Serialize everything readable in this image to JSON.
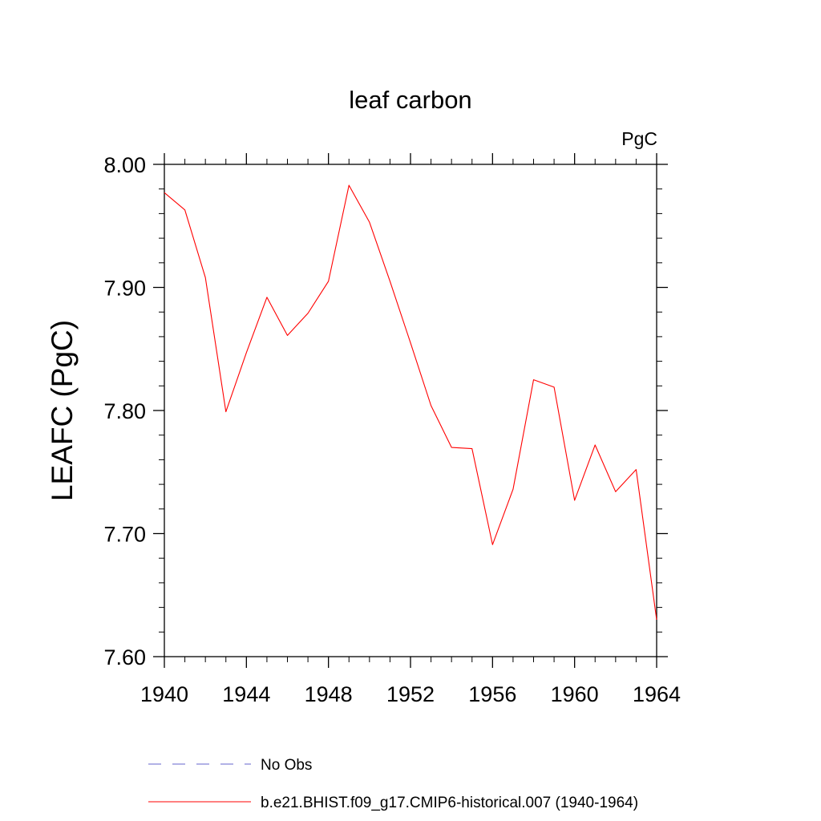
{
  "chart_data": {
    "type": "line",
    "title": "leaf carbon",
    "units": "PgC",
    "ylabel": "LEAFC  (PgC)",
    "xlabel": "",
    "xlim": [
      1940,
      1964
    ],
    "ylim": [
      7.6,
      8.0
    ],
    "x_ticks": [
      "1940",
      "1944",
      "1948",
      "1952",
      "1956",
      "1960",
      "1964"
    ],
    "y_ticks": [
      "7.60",
      "7.70",
      "7.80",
      "7.90",
      "8.00"
    ],
    "grid": false,
    "legend_position": "bottom",
    "series": [
      {
        "name": "No Obs",
        "color": "#6666cc",
        "style": "dashed",
        "values": []
      },
      {
        "name": "b.e21.BHIST.f09_g17.CMIP6-historical.007 (1940-1964)",
        "color": "#ff0000",
        "style": "solid",
        "x": [
          1940,
          1941,
          1942,
          1943,
          1944,
          1945,
          1946,
          1947,
          1948,
          1949,
          1950,
          1951,
          1952,
          1953,
          1954,
          1955,
          1956,
          1957,
          1958,
          1959,
          1960,
          1961,
          1962,
          1963,
          1964
        ],
        "values": [
          7.977,
          7.963,
          7.908,
          7.799,
          7.847,
          7.892,
          7.861,
          7.879,
          7.905,
          7.983,
          7.953,
          7.905,
          7.855,
          7.804,
          7.77,
          7.769,
          7.691,
          7.736,
          7.825,
          7.819,
          7.727,
          7.772,
          7.734,
          7.752,
          7.63
        ]
      }
    ]
  }
}
